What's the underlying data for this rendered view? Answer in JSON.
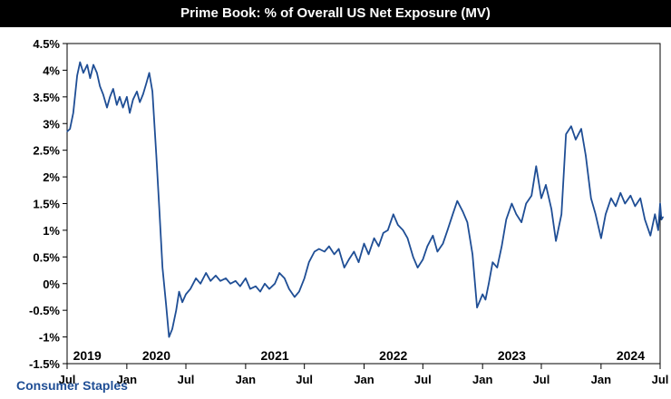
{
  "chart_data": {
    "type": "line",
    "title": "Prime Book: % of Overall US Net Exposure (MV)",
    "series": [
      {
        "name": "Consumer Staples",
        "color": "#1f4e95",
        "points": [
          [
            "2019-07-01",
            2.85
          ],
          [
            "2019-07-10",
            2.9
          ],
          [
            "2019-07-20",
            3.2
          ],
          [
            "2019-08-01",
            3.9
          ],
          [
            "2019-08-10",
            4.15
          ],
          [
            "2019-08-20",
            3.95
          ],
          [
            "2019-09-01",
            4.1
          ],
          [
            "2019-09-10",
            3.85
          ],
          [
            "2019-09-20",
            4.1
          ],
          [
            "2019-10-01",
            3.95
          ],
          [
            "2019-10-10",
            3.7
          ],
          [
            "2019-10-20",
            3.55
          ],
          [
            "2019-11-01",
            3.3
          ],
          [
            "2019-11-10",
            3.5
          ],
          [
            "2019-11-20",
            3.65
          ],
          [
            "2019-12-01",
            3.35
          ],
          [
            "2019-12-10",
            3.5
          ],
          [
            "2019-12-20",
            3.3
          ],
          [
            "2020-01-01",
            3.5
          ],
          [
            "2020-01-10",
            3.2
          ],
          [
            "2020-01-20",
            3.45
          ],
          [
            "2020-02-01",
            3.6
          ],
          [
            "2020-02-10",
            3.4
          ],
          [
            "2020-02-20",
            3.55
          ],
          [
            "2020-03-01",
            3.75
          ],
          [
            "2020-03-10",
            3.95
          ],
          [
            "2020-03-20",
            3.6
          ],
          [
            "2020-04-01",
            2.4
          ],
          [
            "2020-04-10",
            1.4
          ],
          [
            "2020-04-20",
            0.3
          ],
          [
            "2020-05-01",
            -0.4
          ],
          [
            "2020-05-10",
            -1.0
          ],
          [
            "2020-05-20",
            -0.85
          ],
          [
            "2020-06-01",
            -0.5
          ],
          [
            "2020-06-10",
            -0.15
          ],
          [
            "2020-06-20",
            -0.35
          ],
          [
            "2020-07-01",
            -0.2
          ],
          [
            "2020-07-15",
            -0.1
          ],
          [
            "2020-08-01",
            0.1
          ],
          [
            "2020-08-15",
            0.0
          ],
          [
            "2020-09-01",
            0.2
          ],
          [
            "2020-09-15",
            0.05
          ],
          [
            "2020-10-01",
            0.15
          ],
          [
            "2020-10-15",
            0.05
          ],
          [
            "2020-11-01",
            0.1
          ],
          [
            "2020-11-15",
            0.0
          ],
          [
            "2020-12-01",
            0.05
          ],
          [
            "2020-12-15",
            -0.05
          ],
          [
            "2021-01-01",
            0.1
          ],
          [
            "2021-01-15",
            -0.1
          ],
          [
            "2021-02-01",
            -0.05
          ],
          [
            "2021-02-15",
            -0.15
          ],
          [
            "2021-03-01",
            0.0
          ],
          [
            "2021-03-15",
            -0.1
          ],
          [
            "2021-04-01",
            0.0
          ],
          [
            "2021-04-15",
            0.2
          ],
          [
            "2021-05-01",
            0.1
          ],
          [
            "2021-05-15",
            -0.1
          ],
          [
            "2021-06-01",
            -0.25
          ],
          [
            "2021-06-15",
            -0.15
          ],
          [
            "2021-07-01",
            0.1
          ],
          [
            "2021-07-15",
            0.4
          ],
          [
            "2021-08-01",
            0.6
          ],
          [
            "2021-08-15",
            0.65
          ],
          [
            "2021-09-01",
            0.6
          ],
          [
            "2021-09-15",
            0.7
          ],
          [
            "2021-10-01",
            0.55
          ],
          [
            "2021-10-15",
            0.65
          ],
          [
            "2021-11-01",
            0.3
          ],
          [
            "2021-11-15",
            0.45
          ],
          [
            "2021-12-01",
            0.6
          ],
          [
            "2021-12-15",
            0.4
          ],
          [
            "2022-01-01",
            0.75
          ],
          [
            "2022-01-15",
            0.55
          ],
          [
            "2022-02-01",
            0.85
          ],
          [
            "2022-02-15",
            0.7
          ],
          [
            "2022-03-01",
            0.95
          ],
          [
            "2022-03-15",
            1.0
          ],
          [
            "2022-04-01",
            1.3
          ],
          [
            "2022-04-15",
            1.1
          ],
          [
            "2022-05-01",
            1.0
          ],
          [
            "2022-05-15",
            0.85
          ],
          [
            "2022-06-01",
            0.5
          ],
          [
            "2022-06-15",
            0.3
          ],
          [
            "2022-07-01",
            0.45
          ],
          [
            "2022-07-15",
            0.7
          ],
          [
            "2022-08-01",
            0.9
          ],
          [
            "2022-08-15",
            0.6
          ],
          [
            "2022-09-01",
            0.75
          ],
          [
            "2022-09-15",
            1.0
          ],
          [
            "2022-10-01",
            1.3
          ],
          [
            "2022-10-15",
            1.55
          ],
          [
            "2022-11-01",
            1.35
          ],
          [
            "2022-11-15",
            1.15
          ],
          [
            "2022-12-01",
            0.55
          ],
          [
            "2022-12-15",
            -0.45
          ],
          [
            "2023-01-01",
            -0.2
          ],
          [
            "2023-01-10",
            -0.3
          ],
          [
            "2023-01-20",
            0.0
          ],
          [
            "2023-02-01",
            0.4
          ],
          [
            "2023-02-15",
            0.3
          ],
          [
            "2023-03-01",
            0.7
          ],
          [
            "2023-03-15",
            1.2
          ],
          [
            "2023-04-01",
            1.5
          ],
          [
            "2023-04-15",
            1.3
          ],
          [
            "2023-05-01",
            1.15
          ],
          [
            "2023-05-15",
            1.5
          ],
          [
            "2023-06-01",
            1.65
          ],
          [
            "2023-06-15",
            2.2
          ],
          [
            "2023-07-01",
            1.6
          ],
          [
            "2023-07-15",
            1.85
          ],
          [
            "2023-08-01",
            1.4
          ],
          [
            "2023-08-15",
            0.8
          ],
          [
            "2023-09-01",
            1.3
          ],
          [
            "2023-09-15",
            2.8
          ],
          [
            "2023-10-01",
            2.95
          ],
          [
            "2023-10-15",
            2.7
          ],
          [
            "2023-11-01",
            2.9
          ],
          [
            "2023-11-15",
            2.4
          ],
          [
            "2023-12-01",
            1.6
          ],
          [
            "2023-12-15",
            1.3
          ],
          [
            "2024-01-01",
            0.85
          ],
          [
            "2024-01-15",
            1.3
          ],
          [
            "2024-02-01",
            1.6
          ],
          [
            "2024-02-15",
            1.45
          ],
          [
            "2024-03-01",
            1.7
          ],
          [
            "2024-03-15",
            1.5
          ],
          [
            "2024-04-01",
            1.65
          ],
          [
            "2024-04-15",
            1.45
          ],
          [
            "2024-05-01",
            1.6
          ],
          [
            "2024-05-15",
            1.2
          ],
          [
            "2024-06-01",
            0.9
          ],
          [
            "2024-06-15",
            1.3
          ],
          [
            "2024-06-25",
            1.0
          ],
          [
            "2024-07-01",
            1.5
          ],
          [
            "2024-07-05",
            1.2
          ],
          [
            "2024-07-10",
            1.25
          ]
        ]
      }
    ],
    "y_axis": {
      "min": -1.5,
      "max": 4.5,
      "ticks": [
        "4.5%",
        "4%",
        "3.5%",
        "3%",
        "2.5%",
        "2%",
        "1.5%",
        "1%",
        "0.5%",
        "0%",
        "-0.5%",
        "-1%",
        "-1.5%"
      ],
      "tick_values": [
        4.5,
        4.0,
        3.5,
        3.0,
        2.5,
        2.0,
        1.5,
        1.0,
        0.5,
        0.0,
        -0.5,
        -1.0,
        -1.5
      ]
    },
    "x_axis": {
      "start": "2019-07-01",
      "end": "2024-07-01",
      "year_labels": [
        {
          "date": "2019-09-01",
          "text": "2019"
        },
        {
          "date": "2020-04-01",
          "text": "2020"
        },
        {
          "date": "2021-04-01",
          "text": "2021"
        },
        {
          "date": "2022-04-01",
          "text": "2022"
        },
        {
          "date": "2023-04-01",
          "text": "2023"
        },
        {
          "date": "2024-04-01",
          "text": "2024"
        }
      ],
      "month_ticks": [
        {
          "date": "2019-07-01",
          "text": "Jul"
        },
        {
          "date": "2020-01-01",
          "text": "Jan"
        },
        {
          "date": "2020-07-01",
          "text": "Jul"
        },
        {
          "date": "2021-01-01",
          "text": "Jan"
        },
        {
          "date": "2021-07-01",
          "text": "Jul"
        },
        {
          "date": "2022-01-01",
          "text": "Jan"
        },
        {
          "date": "2022-07-01",
          "text": "Jul"
        },
        {
          "date": "2023-01-01",
          "text": "Jan"
        },
        {
          "date": "2023-07-01",
          "text": "Jul"
        },
        {
          "date": "2024-01-01",
          "text": "Jan"
        },
        {
          "date": "2024-07-01",
          "text": "Jul"
        }
      ]
    },
    "grid": false,
    "legend": "bottom-left"
  }
}
